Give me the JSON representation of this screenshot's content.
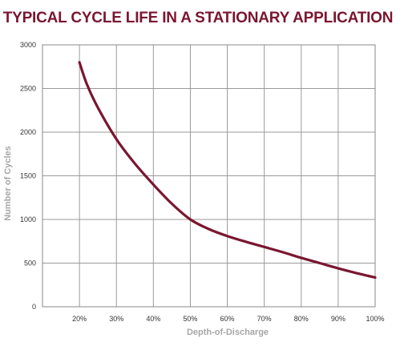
{
  "chart_data": {
    "type": "line",
    "title": "TYPICAL CYCLE LIFE IN A STATIONARY APPLICATION",
    "xlabel": "Depth-of-Discharge",
    "ylabel": "Number of Cycles",
    "x_tick_labels": [
      "20%",
      "30%",
      "40%",
      "50%",
      "60%",
      "70%",
      "80%",
      "90%",
      "100%"
    ],
    "y_tick_labels": [
      "0",
      "500",
      "1000",
      "1500",
      "2000",
      "2500",
      "3000"
    ],
    "xlim": [
      10,
      100
    ],
    "ylim": [
      0,
      3000
    ],
    "grid": true,
    "line_color": "#7a1630",
    "series": [
      {
        "x": [
          20,
          22,
          25,
          30,
          35,
          40,
          45,
          50,
          55,
          60,
          65,
          70,
          75,
          80,
          85,
          90,
          95,
          100
        ],
        "values": [
          2800,
          2550,
          2280,
          1920,
          1640,
          1400,
          1180,
          1000,
          890,
          810,
          745,
          685,
          625,
          560,
          500,
          440,
          385,
          335
        ]
      }
    ]
  }
}
